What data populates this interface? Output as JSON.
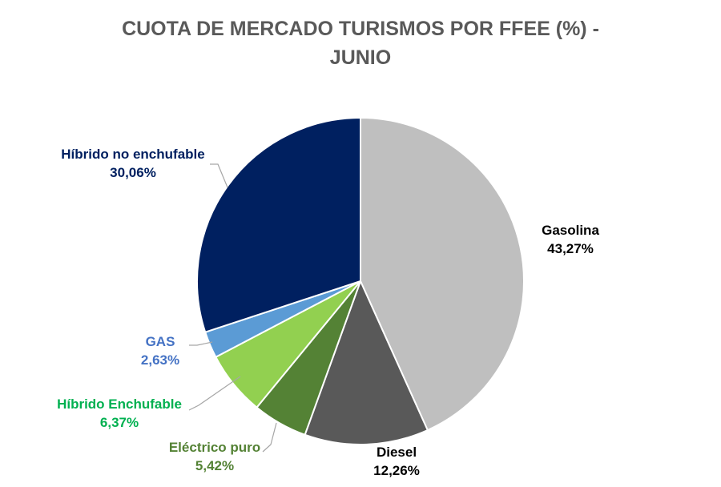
{
  "chart_data": {
    "type": "pie",
    "title_lines": [
      "CUOTA DE MERCADO TURISMOS POR FFEE (%) -",
      "JUNIO"
    ],
    "slices": [
      {
        "label": "Gasolina",
        "value": 43.27,
        "display": "43,27%",
        "color": "#bfbfbf",
        "label_color": "#000000"
      },
      {
        "label": "Diesel",
        "value": 12.26,
        "display": "12,26%",
        "color": "#595959",
        "label_color": "#000000"
      },
      {
        "label": "Eléctrico puro",
        "value": 5.42,
        "display": "5,42%",
        "color": "#548235",
        "label_color": "#548235"
      },
      {
        "label": "Híbrido Enchufable",
        "value": 6.37,
        "display": "6,37%",
        "color": "#92d050",
        "label_color": "#00b050"
      },
      {
        "label": "GAS",
        "value": 2.63,
        "display": "2,63%",
        "color": "#5b9bd5",
        "label_color": "#4472c4"
      },
      {
        "label": "Híbrido no enchufable",
        "value": 30.06,
        "display": "30,06%",
        "color": "#002060",
        "label_color": "#002060"
      }
    ],
    "start_angle": "12 o'clock",
    "direction": "clockwise",
    "legend": "none",
    "data_labels": "outside"
  }
}
